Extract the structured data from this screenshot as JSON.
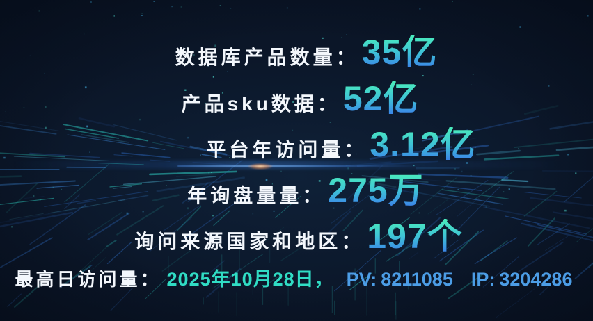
{
  "chart_data": {
    "type": "table",
    "rows": [
      {
        "label": "数据库产品数量：",
        "value": "35",
        "unit": "亿",
        "numeric": 35
      },
      {
        "label": "产品sku数据：",
        "value": "52",
        "unit": "亿",
        "numeric": 52
      },
      {
        "label": "平台年访问量：",
        "value": "3.12",
        "unit": "亿",
        "numeric": 3.12
      },
      {
        "label": "年询盘量量：",
        "value": "275",
        "unit": "万",
        "numeric": 275
      },
      {
        "label": "询问来源国家和地区：",
        "value": "197",
        "unit": "个",
        "numeric": 197
      }
    ]
  },
  "footer": {
    "label": "最高日访问量：",
    "date": "2025年10月28日，",
    "pv_label": "PV:",
    "pv_value": "8211085",
    "ip_label": "IP:",
    "ip_value": "3204286"
  },
  "colors": {
    "background": "#0b1628",
    "label_text": "#f3f7fc",
    "value_gradient_top": "#4aeabd",
    "value_gradient_bottom": "#3b84e8",
    "date_teal": "#30dcc4",
    "pv_ip_blue": "#4c9de6",
    "streak_blue": "#2a64ba",
    "streak_teal": "#2fd2c6"
  }
}
